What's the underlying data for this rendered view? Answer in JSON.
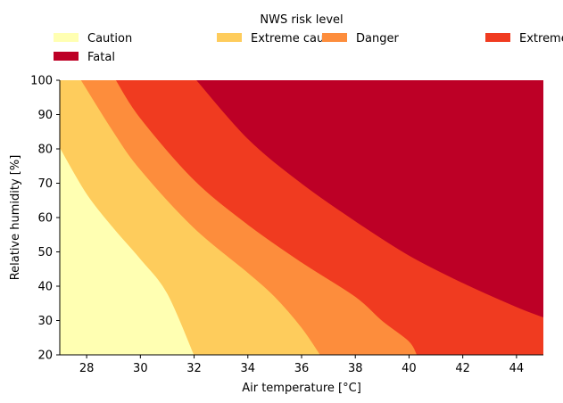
{
  "chart_data": {
    "type": "area",
    "title": "",
    "xlabel": "Air temperature [°C]",
    "ylabel": "Relative humidity [%]",
    "xlim": [
      27,
      45
    ],
    "ylim": [
      20,
      100
    ],
    "x_ticks": [
      28,
      30,
      32,
      34,
      36,
      38,
      40,
      42,
      44
    ],
    "y_ticks": [
      20,
      30,
      40,
      50,
      60,
      70,
      80,
      90,
      100
    ],
    "grid": false,
    "legend": {
      "title": "NWS risk level",
      "placement": "top",
      "columns": 4,
      "entries": [
        "Caution",
        "Extreme caution",
        "Danger",
        "Extreme danger",
        "Fatal"
      ]
    },
    "regions": [
      {
        "name": "Caution",
        "color": "#ffffb2"
      },
      {
        "name": "Extreme caution",
        "color": "#fecc5c"
      },
      {
        "name": "Danger",
        "color": "#fd8d3c"
      },
      {
        "name": "Extreme danger",
        "color": "#f03b20"
      },
      {
        "name": "Fatal",
        "color": "#bd0026"
      }
    ],
    "boundaries": [
      {
        "between": [
          "Caution",
          "Extreme caution"
        ],
        "points": [
          [
            27,
            80.5
          ],
          [
            28,
            67
          ],
          [
            29,
            57
          ],
          [
            30,
            48
          ],
          [
            31,
            38
          ],
          [
            32,
            20
          ]
        ]
      },
      {
        "between": [
          "Extreme caution",
          "Danger"
        ],
        "points": [
          [
            27.8,
            100
          ],
          [
            29,
            85
          ],
          [
            30,
            74
          ],
          [
            32,
            57
          ],
          [
            34,
            44
          ],
          [
            35,
            37
          ],
          [
            36,
            28
          ],
          [
            36.7,
            20
          ]
        ]
      },
      {
        "between": [
          "Danger",
          "Extreme danger"
        ],
        "points": [
          [
            29.1,
            100
          ],
          [
            30,
            89
          ],
          [
            32,
            71
          ],
          [
            34,
            58
          ],
          [
            36,
            47
          ],
          [
            38,
            37
          ],
          [
            39,
            30
          ],
          [
            40,
            24
          ],
          [
            40.3,
            20
          ]
        ]
      },
      {
        "between": [
          "Extreme danger",
          "Fatal"
        ],
        "points": [
          [
            32.1,
            100
          ],
          [
            34,
            83
          ],
          [
            36,
            70
          ],
          [
            38,
            59
          ],
          [
            40,
            49
          ],
          [
            42,
            41
          ],
          [
            44,
            34
          ],
          [
            45,
            31
          ]
        ]
      }
    ]
  }
}
